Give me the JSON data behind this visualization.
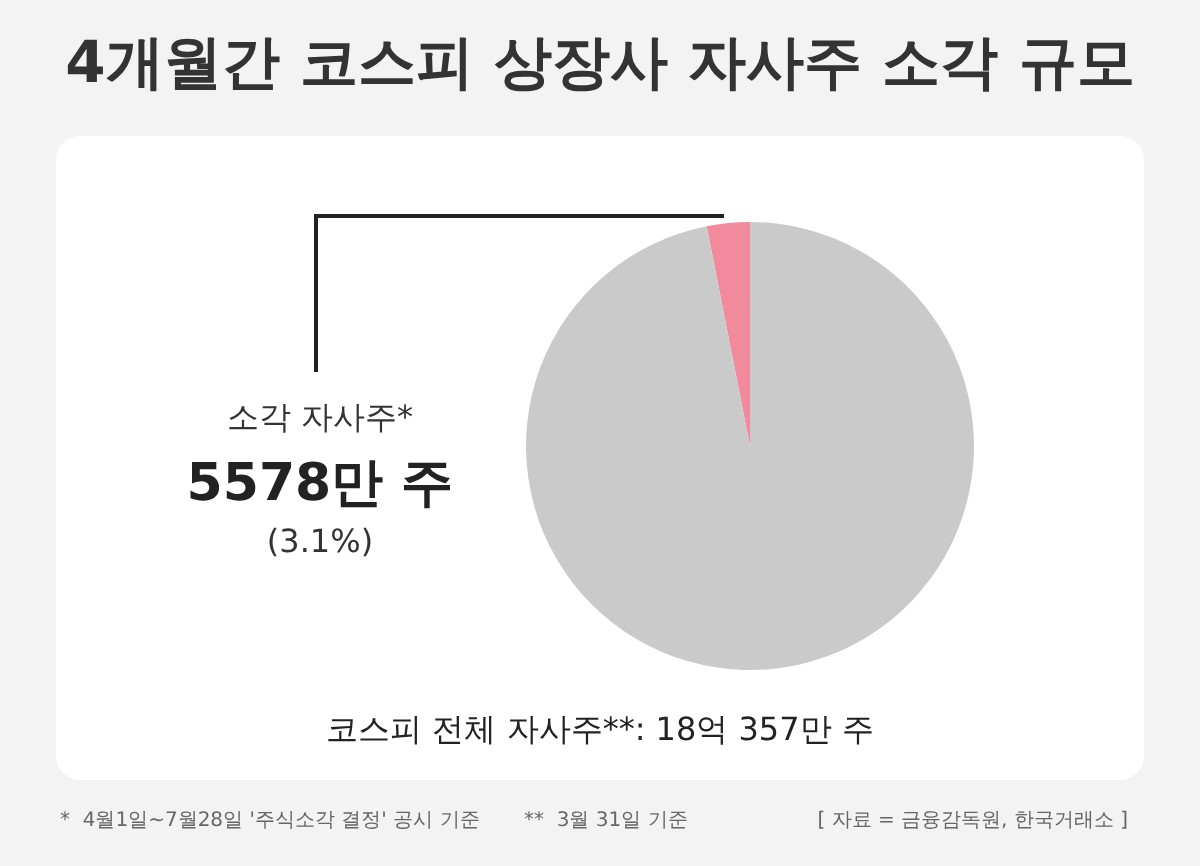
{
  "chart_data": {
    "type": "pie",
    "title": "4개월간 코스피 상장사 자사주 소각 규모",
    "categories": [
      "소각 자사주*",
      null
    ],
    "values": [
      3.1,
      96.9
    ],
    "colors": [
      "#f08a9c",
      "#cacaca"
    ],
    "annotations": [
      "5578만 주",
      "(3.1%)",
      "코스피 전체 자사주**: 18억 357만 주",
      "*  4월1일~7월28일 '주식소각 결정' 공시 기준",
      "**  3월 31일 기준",
      "[ 자료 = 금융감독원, 한국거래소 ]"
    ]
  }
}
